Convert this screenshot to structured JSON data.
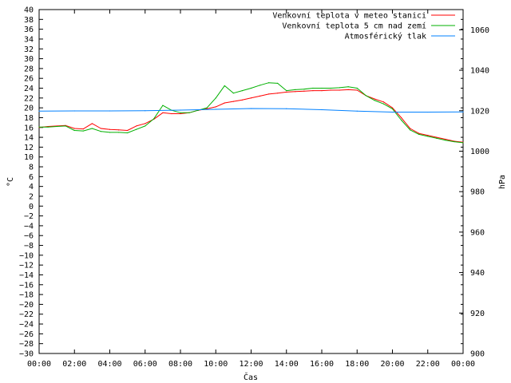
{
  "chart_data": {
    "type": "line",
    "xlabel": "Čas",
    "ylabel": "°C",
    "y2label": "hPa",
    "x_ticks": [
      "00:00",
      "02:00",
      "04:00",
      "06:00",
      "08:00",
      "10:00",
      "12:00",
      "14:00",
      "16:00",
      "18:00",
      "20:00",
      "22:00",
      "00:00"
    ],
    "ylim": [
      -30,
      40
    ],
    "y_ticks": [
      -30,
      -28,
      -26,
      -24,
      -22,
      -20,
      -18,
      -16,
      -14,
      -12,
      -10,
      -8,
      -6,
      -4,
      -2,
      0,
      2,
      4,
      6,
      8,
      10,
      12,
      14,
      16,
      18,
      20,
      22,
      24,
      26,
      28,
      30,
      32,
      34,
      36,
      38,
      40
    ],
    "y2lim": [
      900,
      1070
    ],
    "y2_ticks": [
      900,
      920,
      940,
      960,
      980,
      1000,
      1020,
      1040,
      1060
    ],
    "grid": false,
    "legend_position": "top-right",
    "series": [
      {
        "name": "Venkovní teplota v meteo stanici",
        "color": "#ff0000",
        "axis": "left",
        "x": [
          0,
          0.5,
          1,
          1.5,
          2,
          2.5,
          3,
          3.5,
          4,
          4.5,
          5,
          5.5,
          6,
          6.5,
          7,
          7.5,
          8,
          8.5,
          9,
          9.5,
          10,
          10.5,
          11,
          11.5,
          12,
          12.5,
          13,
          13.5,
          14,
          14.5,
          15,
          15.5,
          16,
          16.5,
          17,
          17.5,
          18,
          18.5,
          19,
          19.5,
          20,
          20.5,
          21,
          21.5,
          22,
          22.5,
          23,
          23.5,
          24
        ],
        "values": [
          16.0,
          16.2,
          16.3,
          16.4,
          15.8,
          15.7,
          16.8,
          15.8,
          15.6,
          15.5,
          15.4,
          16.3,
          16.8,
          17.7,
          19.0,
          18.8,
          18.8,
          19.0,
          19.5,
          19.8,
          20.2,
          21.0,
          21.3,
          21.6,
          22.0,
          22.4,
          22.8,
          23.0,
          23.2,
          23.3,
          23.4,
          23.5,
          23.5,
          23.6,
          23.6,
          23.7,
          23.6,
          22.5,
          21.8,
          21.2,
          20.0,
          18.0,
          15.8,
          14.8,
          14.4,
          14.0,
          13.6,
          13.2,
          13.0
        ]
      },
      {
        "name": "Venkovní teplota 5 cm nad zemí",
        "color": "#00b000",
        "axis": "left",
        "x": [
          0,
          0.5,
          1,
          1.5,
          2,
          2.5,
          3,
          3.5,
          4,
          4.5,
          5,
          5.5,
          6,
          6.5,
          7,
          7.5,
          8,
          8.5,
          9,
          9.5,
          10,
          10.5,
          11,
          11.5,
          12,
          12.5,
          13,
          13.5,
          14,
          14.5,
          15,
          15.5,
          16,
          16.5,
          17,
          17.5,
          18,
          18.5,
          19,
          19.5,
          20,
          20.5,
          21,
          21.5,
          22,
          22.5,
          23,
          23.5,
          24
        ],
        "values": [
          16.1,
          16.1,
          16.2,
          16.3,
          15.4,
          15.3,
          15.8,
          15.2,
          15.0,
          15.0,
          14.9,
          15.6,
          16.3,
          17.8,
          20.5,
          19.5,
          19.0,
          19.0,
          19.5,
          20.0,
          22.0,
          24.5,
          23.0,
          23.5,
          24.0,
          24.6,
          25.1,
          25.0,
          23.5,
          23.7,
          23.8,
          24.0,
          24.0,
          24.0,
          24.1,
          24.3,
          24.0,
          22.5,
          21.5,
          20.8,
          19.8,
          17.5,
          15.5,
          14.6,
          14.2,
          13.8,
          13.4,
          13.1,
          12.9
        ]
      },
      {
        "name": "Atmosférický tlak",
        "color": "#0080ff",
        "axis": "right",
        "x": [
          0,
          2,
          4,
          6,
          8,
          10,
          12,
          14,
          16,
          18,
          20,
          22,
          24
        ],
        "values": [
          1019.8,
          1019.9,
          1019.9,
          1020.0,
          1020.3,
          1020.7,
          1021.1,
          1021.0,
          1020.5,
          1019.8,
          1019.3,
          1019.3,
          1019.4
        ]
      }
    ]
  }
}
